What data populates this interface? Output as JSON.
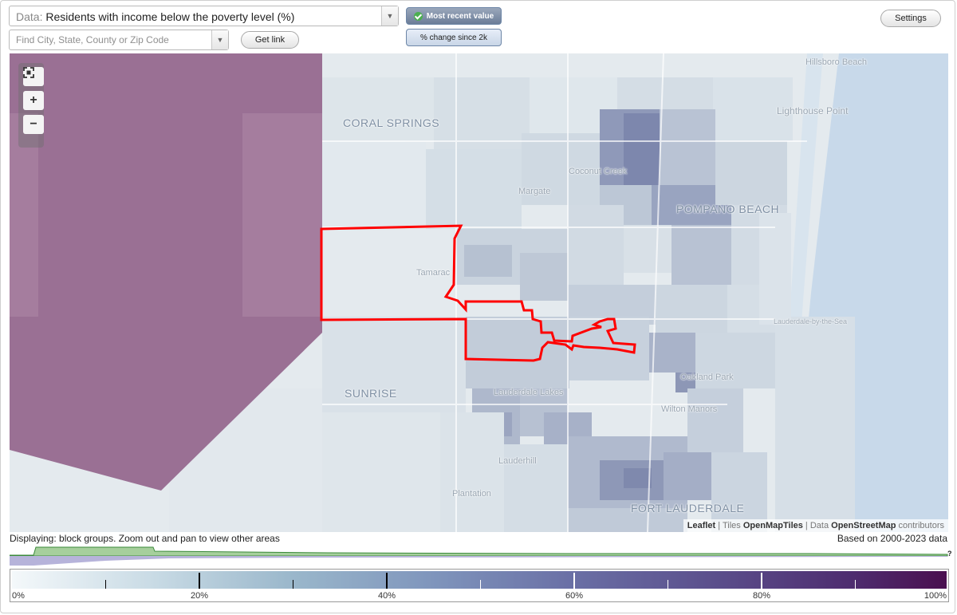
{
  "data_selector": {
    "prefix": "Data:",
    "value": "Residents with income below the poverty level (%)"
  },
  "search": {
    "placeholder": "Find City, State, County or Zip Code"
  },
  "buttons": {
    "get_link": "Get link",
    "settings": "Settings"
  },
  "toggles": {
    "most_recent": "Most recent value",
    "pct_change": "% change since 2k"
  },
  "map": {
    "places": [
      "CORAL SPRINGS",
      "POMPANO BEACH",
      "SUNRISE",
      "FORT LAUDERDALE",
      "Hillsboro Beach",
      "Lighthouse Point",
      "Coconut Creek",
      "Margate",
      "Tamarac",
      "Lauderdale Lakes",
      "Oakland Park",
      "Wilton Manors",
      "Lauderhill",
      "Plantation",
      "Lauderdale-by-the-Sea"
    ],
    "outline_color": "#ff0000",
    "attribution": {
      "leaflet": "Leaflet",
      "tiles_prefix": "Tiles",
      "tiles": "OpenMapTiles",
      "data_prefix": "Data",
      "osm": "OpenStreetMap",
      "contributors": "contributors"
    }
  },
  "footer": {
    "displaying": "Displaying: block groups. Zoom out and pan to view other areas",
    "based_on": "Based on 2000-2023 data",
    "unknown_marker": "?"
  },
  "legend": {
    "labels": [
      "0%",
      "20%",
      "40%",
      "60%",
      "80%",
      "100%"
    ],
    "min_color": "#f4f8fa",
    "max_color": "#4a0f4f"
  },
  "icons": {
    "fullscreen": "fullscreen-icon",
    "zoom_in": "plus-icon",
    "zoom_out": "minus-icon",
    "dropdown": "chevron-down-icon",
    "check": "check-icon"
  }
}
